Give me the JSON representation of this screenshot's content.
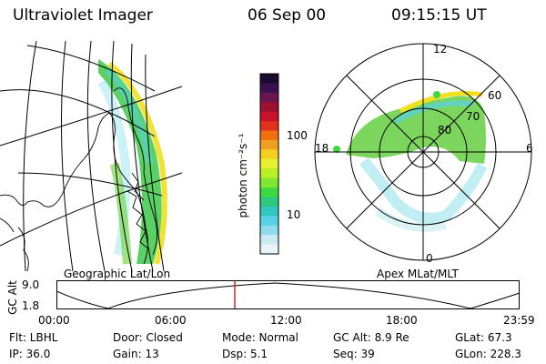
{
  "header": {
    "instrument": "Ultraviolet Imager",
    "date": "06 Sep 00",
    "time": "09:15:15 UT"
  },
  "colorbar": {
    "unit_label": "photon cm⁻²s⁻¹",
    "ticks": [
      "100",
      "10"
    ],
    "colors": [
      "#1a0a2e",
      "#3a1050",
      "#6a1550",
      "#9c1030",
      "#c8102a",
      "#e0301e",
      "#f07010",
      "#f0a020",
      "#f5d020",
      "#e8f030",
      "#b8f028",
      "#80e830",
      "#40d840",
      "#30c880",
      "#30c8c0",
      "#58d0e8",
      "#90dcec",
      "#c8ecf2",
      "#e8f4f8"
    ]
  },
  "maps": {
    "left_label": "Geographic Lat/Lon",
    "right_label": "Apex  MLat/MLT",
    "mlat_labels": [
      "80",
      "70",
      "60"
    ],
    "mlt_labels": [
      "12",
      "18",
      "6",
      "0"
    ]
  },
  "altitude_plot": {
    "ylabel": "GC Alt",
    "yticks": [
      "9.0",
      "1.8"
    ],
    "xticks": [
      "00:00",
      "06:00",
      "12:00",
      "18:00",
      "23:59"
    ],
    "marker_color": "#e00000"
  },
  "info": {
    "flt": "Flt: LBHL",
    "ip": "IP: 36.0",
    "door": "Door: Closed",
    "gain": "Gain: 13",
    "mode": "Mode: Normal",
    "dsp": "Dsp:    5.1",
    "gcalt": "GC Alt: 8.9 Re",
    "seq": "Seq: 39",
    "glat": "GLat:  67.3",
    "glon": "GLon: 228.3"
  }
}
